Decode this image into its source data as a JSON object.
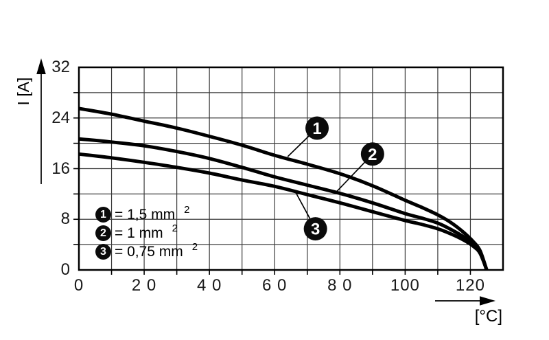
{
  "chart_data": {
    "type": "line",
    "title": "",
    "xlabel": "[°C]",
    "ylabel": "I [A]",
    "xlim": [
      0,
      130
    ],
    "ylim": [
      0,
      32
    ],
    "grid": true,
    "x_grid_step": 10,
    "y_grid_step": 4,
    "x_tick_values": [
      0,
      20,
      40,
      60,
      80,
      100,
      120
    ],
    "x_tick_labels": [
      "0",
      "2 0",
      "4 0",
      "6 0",
      "8 0",
      "100",
      "120"
    ],
    "y_tick_values": [
      0,
      8,
      16,
      24,
      32
    ],
    "y_tick_labels": [
      "0",
      "8",
      "16",
      "24",
      "32"
    ],
    "series": [
      {
        "name": "1",
        "cross_section": "1,5 mm²",
        "x": [
          0,
          10,
          20,
          30,
          40,
          50,
          60,
          70,
          80,
          90,
          100,
          105,
          110,
          114,
          118,
          121,
          123,
          125
        ],
        "y": [
          25.5,
          24.6,
          23.5,
          22.4,
          21.1,
          19.7,
          18.1,
          16.7,
          15.2,
          13.3,
          11.0,
          9.9,
          8.7,
          7.5,
          5.9,
          4.4,
          3.0,
          0
        ]
      },
      {
        "name": "2",
        "cross_section": "1 mm²",
        "x": [
          0,
          10,
          20,
          30,
          40,
          50,
          60,
          70,
          80,
          90,
          100,
          105,
          110,
          114,
          118,
          121,
          123,
          125
        ],
        "y": [
          20.7,
          20.2,
          19.6,
          18.7,
          17.6,
          16.2,
          14.7,
          13.4,
          12.1,
          10.6,
          8.9,
          8.2,
          7.4,
          6.4,
          5.2,
          4.0,
          2.8,
          0
        ]
      },
      {
        "name": "3",
        "cross_section": "0,75 mm²",
        "x": [
          0,
          10,
          20,
          30,
          40,
          50,
          60,
          70,
          80,
          90,
          100,
          105,
          110,
          114,
          118,
          121,
          123,
          125
        ],
        "y": [
          18.3,
          17.7,
          17.0,
          16.2,
          15.3,
          14.2,
          13.2,
          11.9,
          10.6,
          9.2,
          7.8,
          7.2,
          6.5,
          5.7,
          4.7,
          3.7,
          2.6,
          0
        ]
      }
    ],
    "markers": [
      {
        "label": "1",
        "x": 73.0,
        "y": 22.4,
        "leader_x": 64.0,
        "leader_y": 17.9
      },
      {
        "label": "2",
        "x": 90.0,
        "y": 18.3,
        "leader_x": 78.5,
        "leader_y": 12.1
      },
      {
        "label": "3",
        "x": 72.5,
        "y": 6.5,
        "leader_x": 66.5,
        "leader_y": 12.2
      }
    ],
    "legend": {
      "items": [
        {
          "symbol": "1",
          "text": "= 1,5 mm",
          "sup": "2"
        },
        {
          "symbol": "2",
          "text": "= 1 mm",
          "sup": "2"
        },
        {
          "symbol": "3",
          "text": "= 0,75 mm",
          "sup": "2"
        }
      ]
    },
    "colors": {
      "background": "#ffffff",
      "curve": "#000000",
      "grid": "#3a3a3a",
      "frame": "#000000",
      "marker_bg": "#0b0b0b",
      "marker_text": "#ffffff"
    }
  }
}
